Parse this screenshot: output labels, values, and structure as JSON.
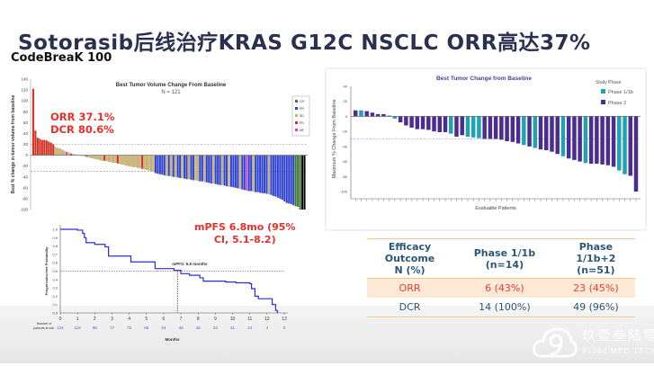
{
  "slide": {
    "title": "Sotorasib后线治疗KRAS G12C NSCLC ORR高达37%",
    "subtitle": "CodeBreaK 100",
    "orr_annotation": "ORR 37.1%",
    "dcr_annotation": "DCR 80.6%",
    "pfs_annotation_line1": "mPFS 6.8mo (95%",
    "pfs_annotation_line2": "CI, 5.1-8.2)",
    "watermark_cn": "玖壹叁陆零",
    "watermark_en": "91360 MED TECH"
  },
  "table": {
    "headers": [
      "Efficacy Outcome N (%)",
      "Phase 1/1b (n=14)",
      "Phase 1/1b+2 (n=51)"
    ],
    "header_lines": [
      [
        "Efficacy",
        "Outcome",
        "N (%)"
      ],
      [
        "Phase 1/1b",
        "(n=14)"
      ],
      [
        "Phase",
        "1/1b+2",
        "(n=51)"
      ]
    ],
    "rows": [
      [
        "ORR",
        "6 (43%)",
        "23 (45%)"
      ],
      [
        "DCR",
        "14 (100%)",
        "49 (96%)"
      ]
    ],
    "colors": {
      "header_text": "#2c5677",
      "orr_text": "#e8402e",
      "orr_bg": "#fde9d6",
      "rule": "#f1c98a"
    }
  },
  "chart_data": [
    {
      "type": "bar",
      "title": "Best Tumor Volume Change From Baseline",
      "subtitle": "N = 121",
      "ylabel": "Best % change in tumor volume from baseline",
      "ylim": [
        -100,
        140
      ],
      "yticks": [
        140,
        120,
        100,
        80,
        60,
        40,
        20,
        0,
        -20,
        -40,
        -60,
        -80,
        -100
      ],
      "reference_lines": [
        20,
        -30
      ],
      "legend": {
        "position": "top-right",
        "entries": [
          "CR",
          "PR",
          "SD",
          "PD",
          "NE"
        ]
      },
      "colors": {
        "CR": "#3a7a2a",
        "PR": "#2a3fe0",
        "SD": "#cdb56a",
        "PD": "#e02a1a",
        "NE": "#e040e0"
      },
      "values": [
        122,
        45,
        32,
        30,
        28,
        28,
        27,
        25,
        23,
        20,
        15,
        13,
        12,
        10,
        8,
        6,
        5,
        3,
        2,
        1,
        1,
        0,
        -1,
        -2,
        -3,
        -4,
        -5,
        -6,
        -7,
        -8,
        -9,
        -10,
        -10,
        -11,
        -12,
        -13,
        -14,
        -14,
        -15,
        -16,
        -17,
        -18,
        -19,
        -20,
        -21,
        -22,
        -22,
        -23,
        -24,
        -25,
        -26,
        -27,
        -28,
        -29,
        -30,
        -33,
        -34,
        -35,
        -36,
        -37,
        -38,
        -38,
        -39,
        -40,
        -40,
        -41,
        -42,
        -42,
        -43,
        -44,
        -44,
        -45,
        -46,
        -46,
        -47,
        -48,
        -48,
        -49,
        -50,
        -51,
        -52,
        -52,
        -53,
        -54,
        -55,
        -55,
        -56,
        -57,
        -58,
        -58,
        -59,
        -60,
        -61,
        -62,
        -63,
        -64,
        -65,
        -66,
        -66,
        -67,
        -68,
        -68,
        -69,
        -70,
        -70,
        -71,
        -72,
        -73,
        -75,
        -76,
        -78,
        -80,
        -82,
        -85,
        -88,
        -89,
        -90,
        -92,
        -94,
        -95,
        -100,
        -100,
        -100
      ],
      "status": [
        "PD",
        "PD",
        "PD",
        "PD",
        "PD",
        "PD",
        "PD",
        "PD",
        "PD",
        "PD",
        "SD",
        "SD",
        "SD",
        "SD",
        "SD",
        "NE",
        "SD",
        "PD",
        "SD",
        "SD",
        "SD",
        "SD",
        "SD",
        "SD",
        "PD",
        "SD",
        "SD",
        "SD",
        "SD",
        "SD",
        "SD",
        "SD",
        "PD",
        "SD",
        "SD",
        "SD",
        "SD",
        "SD",
        "PD",
        "SD",
        "SD",
        "SD",
        "SD",
        "SD",
        "SD",
        "SD",
        "SD",
        "SD",
        "SD",
        "PD",
        "SD",
        "SD",
        "SD",
        "SD",
        "SD",
        "PR",
        "PR",
        "PR",
        "PR",
        "PR",
        "SD",
        "PR",
        "SD",
        "PR",
        "SD",
        "PR",
        "PR",
        "SD",
        "PR",
        "PR",
        "SD",
        "PR",
        "PR",
        "SD",
        "SD",
        "PR",
        "PR",
        "SD",
        "PR",
        "PR",
        "PR",
        "SD",
        "PR",
        "PR",
        "PR",
        "SD",
        "PR",
        "PR",
        "SD",
        "PR",
        "PR",
        "PR",
        "PR",
        "SD",
        "PR",
        "PR",
        "NE",
        "PR",
        "PR",
        "SD",
        "PR",
        "PR",
        "PR",
        "PR",
        "PR",
        "PR",
        "SD",
        "PR",
        "PR",
        "PR",
        "PR",
        "PR",
        "PR",
        "PR",
        "PR",
        "PR",
        "PR",
        "PR",
        "CR",
        "CR",
        "CR"
      ]
    },
    {
      "type": "bar",
      "title": "Best Tumor Change from Baseline",
      "ylabel": "Maximum % Change From Baseline",
      "xlabel": "Evaluable Patients",
      "ylim": [
        -100,
        40
      ],
      "yticks": [
        40,
        20,
        0,
        -20,
        -40,
        -60,
        -80,
        -100
      ],
      "reference_lines": [
        -30
      ],
      "legend": {
        "position": "top-right",
        "title": "Study Phase",
        "entries": [
          "Phase 1/1b",
          "Phase 2"
        ]
      },
      "colors": {
        "Phase 1/1b": "#1fa3b3",
        "Phase 2": "#4b2d8f"
      },
      "values": [
        8,
        8,
        7,
        5,
        3,
        3,
        1,
        -3,
        -8,
        -12,
        -15,
        -17,
        -17,
        -18,
        -20,
        -21,
        -21,
        -23,
        -27,
        -25,
        -27,
        -28,
        -29,
        -30,
        -30,
        -30,
        -31,
        -33,
        -34,
        -36,
        -38,
        -40,
        -42,
        -44,
        -45,
        -47,
        -50,
        -53,
        -56,
        -58,
        -60,
        -62,
        -63,
        -63,
        -64,
        -65,
        -67,
        -72,
        -77,
        -79,
        -100
      ],
      "phase": [
        "Phase 2",
        "Phase 1/1b",
        "Phase 2",
        "Phase 2",
        "Phase 2",
        "Phase 2",
        "Phase 2",
        "Phase 1/1b",
        "Phase 2",
        "Phase 2",
        "Phase 2",
        "Phase 2",
        "Phase 2",
        "Phase 2",
        "Phase 2",
        "Phase 2",
        "Phase 2",
        "Phase 1/1b",
        "Phase 2",
        "Phase 2",
        "Phase 1/1b",
        "Phase 1/1b",
        "Phase 1/1b",
        "Phase 2",
        "Phase 2",
        "Phase 2",
        "Phase 2",
        "Phase 2",
        "Phase 2",
        "Phase 2",
        "Phase 1/1b",
        "Phase 2",
        "Phase 1/1b",
        "Phase 2",
        "Phase 2",
        "Phase 2",
        "Phase 2",
        "Phase 1/1b",
        "Phase 2",
        "Phase 2",
        "Phase 2",
        "Phase 1/1b",
        "Phase 2",
        "Phase 2",
        "Phase 2",
        "Phase 2",
        "Phase 2",
        "Phase 1/1b",
        "Phase 1/1b",
        "Phase 2",
        "Phase 2"
      ]
    },
    {
      "type": "line",
      "ylabel": "Progression-free Probability",
      "xlabel": "Months",
      "xlim": [
        0,
        13
      ],
      "ylim": [
        0,
        1.0
      ],
      "xticks": [
        0,
        1,
        2,
        3,
        4,
        5,
        6,
        7,
        8,
        9,
        10,
        11,
        12,
        13
      ],
      "yticks": [
        0.0,
        0.1,
        0.2,
        0.3,
        0.4,
        0.5,
        0.6,
        0.7,
        0.8,
        0.9,
        1.0
      ],
      "median_label": "mPFS: 6.8 months",
      "median_x": 6.8,
      "median_y": 0.5,
      "color": "#2a2adf",
      "x": [
        0,
        1.0,
        1.3,
        1.4,
        1.5,
        2.0,
        2.6,
        2.8,
        4.1,
        5.5,
        6.6,
        7.0,
        7.5,
        8.1,
        8.3,
        9.6,
        10.2,
        11.0,
        11.1,
        11.3,
        11.5,
        12.3,
        12.5,
        12.6
      ],
      "y": [
        1.0,
        0.99,
        0.95,
        0.9,
        0.84,
        0.82,
        0.79,
        0.68,
        0.61,
        0.53,
        0.51,
        0.47,
        0.45,
        0.42,
        0.38,
        0.37,
        0.36,
        0.35,
        0.29,
        0.2,
        0.17,
        0.1,
        0.03,
        0.0
      ],
      "risk_table_label": "Number of patients at risk:",
      "at_risk": [
        124,
        119,
        98,
        77,
        75,
        65,
        54,
        49,
        45,
        34,
        31,
        24,
        4,
        0
      ]
    }
  ]
}
